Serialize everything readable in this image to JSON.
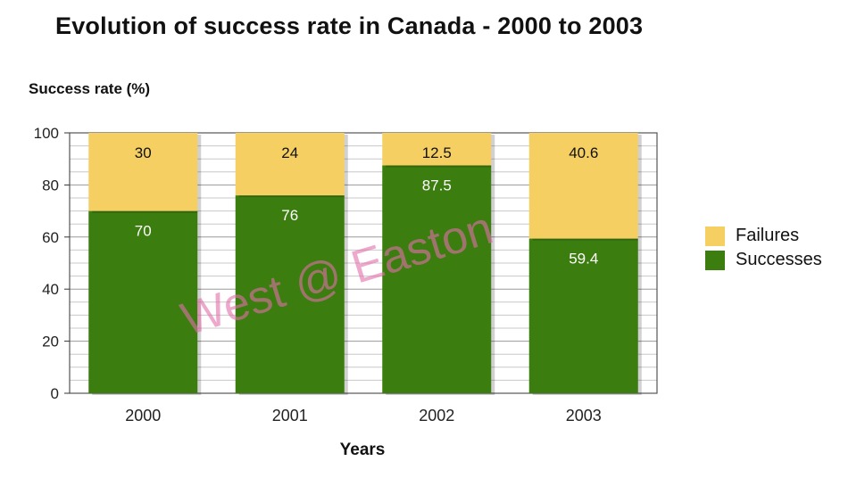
{
  "watermark": "West @ Easton",
  "chart_data": {
    "type": "bar",
    "stacked": true,
    "title": "Evolution of success rate in Canada - 2000 to 2003",
    "ylabel": "Success rate (%)",
    "xlabel": "Years",
    "categories": [
      "2000",
      "2001",
      "2002",
      "2003"
    ],
    "ylim": [
      0,
      100
    ],
    "yticks": [
      0,
      20,
      40,
      60,
      80,
      100
    ],
    "grid": true,
    "legend_position": "right",
    "series": [
      {
        "name": "Successes",
        "color": "#3c7d0f",
        "label_color": "#ffffff",
        "values": [
          70,
          76,
          87.5,
          59.4
        ]
      },
      {
        "name": "Failures",
        "color": "#f6cf63",
        "label_color": "#111111",
        "values": [
          30,
          24,
          12.5,
          40.6
        ]
      }
    ]
  }
}
